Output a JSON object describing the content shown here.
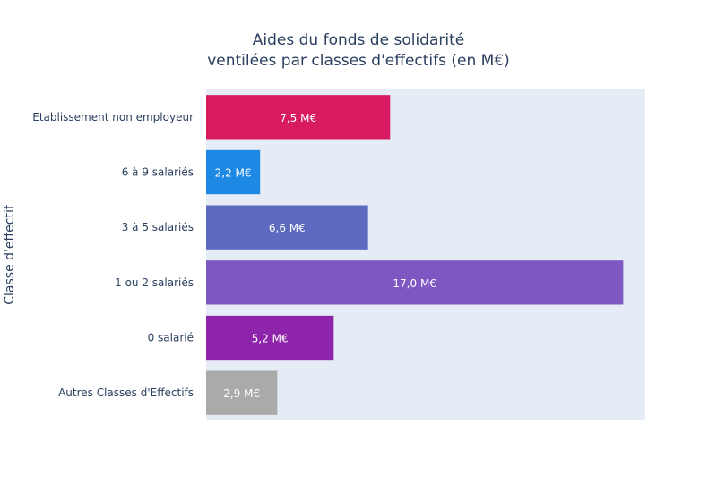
{
  "chart_data": {
    "type": "bar",
    "orientation": "horizontal",
    "title": "Aides du fonds de solidarité",
    "subtitle": "ventilées par classes d'effectifs (en M€)",
    "xlabel": "",
    "ylabel": "Classe d'effectif",
    "xlim": [
      0,
      17.9
    ],
    "grid": false,
    "categories": [
      "Etablissement non employeur",
      "6 à 9 salariés",
      "3 à 5 salariés",
      "1 ou 2 salariés",
      "0 salarié",
      "Autres Classes d'Effectifs"
    ],
    "values": [
      7.5,
      2.2,
      6.6,
      17.0,
      5.2,
      2.9
    ],
    "value_labels": [
      "7,5 M€",
      "2,2 M€",
      "6,6 M€",
      "17,0 M€",
      "5,2 M€",
      "2,9 M€"
    ],
    "colors": [
      "#d81b60",
      "#1e88e5",
      "#5c6bc0",
      "#7e57c2",
      "#8e24aa",
      "#aaaaaa"
    ],
    "plot_background": "#e5ecf6"
  }
}
